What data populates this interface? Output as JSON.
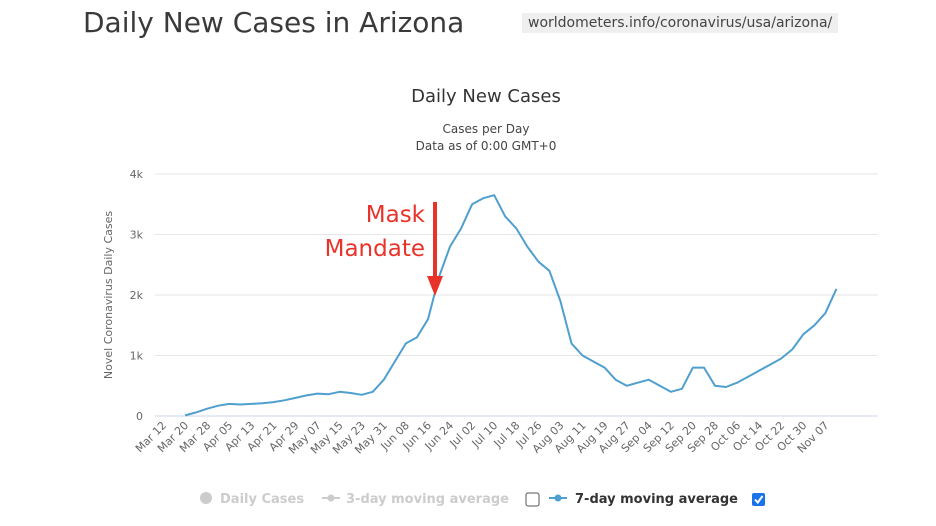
{
  "header": {
    "title": "Daily New Cases in Arizona",
    "source": "worldometers.info/coronavirus/usa/arizona/"
  },
  "chart_data": {
    "type": "line",
    "title": "Daily New Cases",
    "subtitle_line1": "Cases per Day",
    "subtitle_line2": "Data as of 0:00 GMT+0",
    "ylabel": "Novel Coronavirus Daily Cases",
    "xlabel": "",
    "ylim": [
      0,
      4000
    ],
    "yticks": [
      0,
      1000,
      2000,
      3000,
      4000
    ],
    "ytick_labels": [
      "0",
      "1k",
      "2k",
      "3k",
      "4k"
    ],
    "grid": true,
    "x_tick_labels": [
      "Mar 12",
      "Mar 20",
      "Mar 28",
      "Apr 05",
      "Apr 13",
      "Apr 21",
      "Apr 29",
      "May 07",
      "May 15",
      "May 23",
      "May 31",
      "Jun 08",
      "Jun 16",
      "Jun 24",
      "Jul 02",
      "Jul 10",
      "Jul 18",
      "Jul 26",
      "Aug 03",
      "Aug 11",
      "Aug 19",
      "Aug 27",
      "Sep 04",
      "Sep 12",
      "Sep 20",
      "Sep 28",
      "Oct 06",
      "Oct 14",
      "Oct 22",
      "Oct 30",
      "Nov 07"
    ],
    "series": [
      {
        "name": "7-day moving average",
        "color": "#4f9fcf",
        "x": [
          "Mar 20",
          "Mar 24",
          "Mar 28",
          "Apr 01",
          "Apr 05",
          "Apr 09",
          "Apr 13",
          "Apr 17",
          "Apr 21",
          "Apr 25",
          "Apr 29",
          "May 03",
          "May 07",
          "May 11",
          "May 15",
          "May 19",
          "May 23",
          "May 27",
          "May 31",
          "Jun 04",
          "Jun 08",
          "Jun 12",
          "Jun 16",
          "Jun 20",
          "Jun 24",
          "Jun 28",
          "Jul 02",
          "Jul 06",
          "Jul 10",
          "Jul 14",
          "Jul 18",
          "Jul 22",
          "Jul 26",
          "Jul 30",
          "Aug 03",
          "Aug 07",
          "Aug 11",
          "Aug 15",
          "Aug 19",
          "Aug 23",
          "Aug 27",
          "Aug 31",
          "Sep 04",
          "Sep 08",
          "Sep 12",
          "Sep 16",
          "Sep 20",
          "Sep 24",
          "Sep 28",
          "Oct 02",
          "Oct 06",
          "Oct 10",
          "Oct 14",
          "Oct 18",
          "Oct 22",
          "Oct 26",
          "Oct 30",
          "Nov 03",
          "Nov 07",
          "Nov 11"
        ],
        "values": [
          10,
          60,
          120,
          170,
          200,
          190,
          200,
          210,
          230,
          260,
          300,
          340,
          370,
          360,
          400,
          380,
          350,
          400,
          600,
          900,
          1200,
          1300,
          1600,
          2300,
          2800,
          3100,
          3500,
          3600,
          3650,
          3300,
          3100,
          2800,
          2550,
          2400,
          1900,
          1200,
          1000,
          900,
          800,
          600,
          500,
          550,
          600,
          500,
          400,
          450,
          800,
          800,
          500,
          480,
          550,
          650,
          750,
          850,
          950,
          1100,
          1350,
          1500,
          1700,
          2100
        ]
      }
    ],
    "annotation": {
      "line1": "Mask",
      "line2": "Mandate",
      "x": "Jun 16"
    }
  },
  "legend": {
    "items": [
      {
        "label": "Daily Cases",
        "color": "#cccccc",
        "active": false
      },
      {
        "label": "3-day moving average",
        "color": "#cccccc",
        "active": false,
        "checked": false
      },
      {
        "label": "7-day moving average",
        "color": "#4f9fcf",
        "active": true,
        "checked": true
      }
    ]
  }
}
